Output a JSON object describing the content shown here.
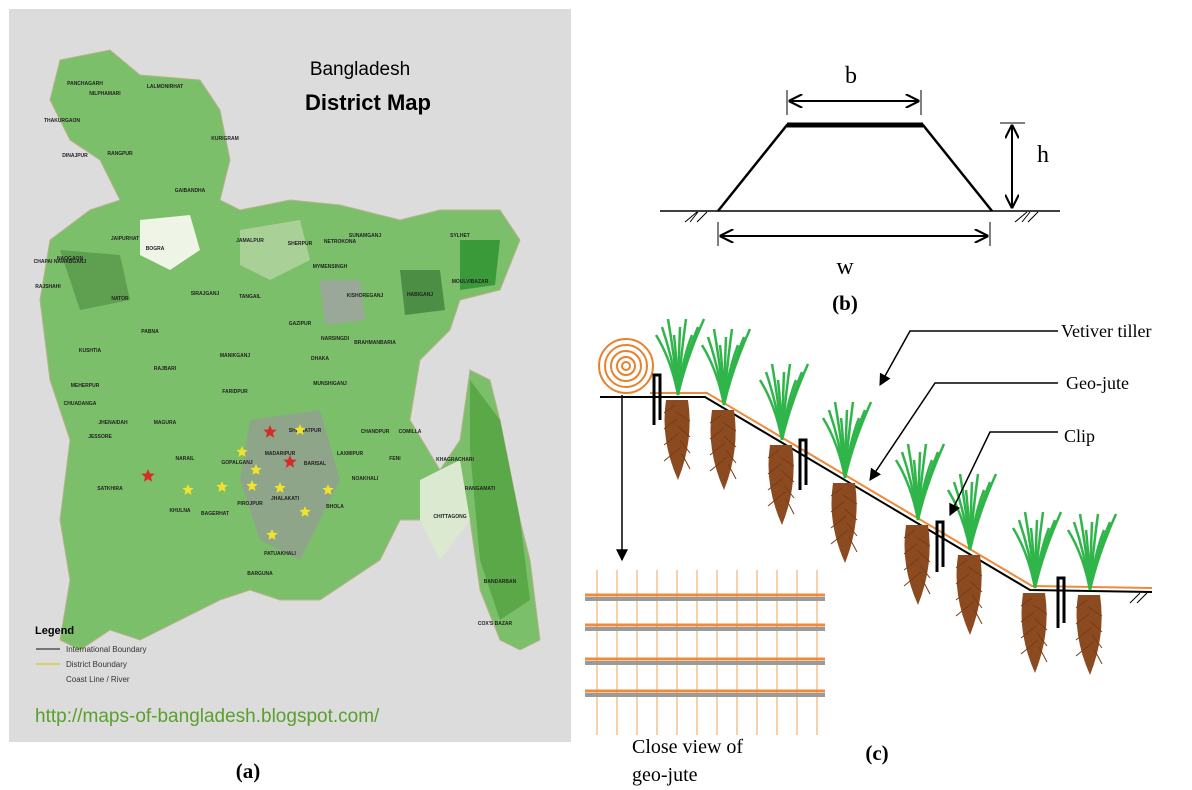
{
  "panel_a": {
    "title_line1": "Bangladesh",
    "title_line2": "District Map",
    "districts": [
      "PANCHAGARH",
      "THAKURGAON",
      "NILPHAMARI",
      "LALMONIRHAT",
      "DINAJPUR",
      "RANGPUR",
      "KURIGRAM",
      "GAIBANDHA",
      "JAIPURHAT",
      "SHERPUR",
      "SUNAMGANJ",
      "SYLHET",
      "NAOGAON",
      "BOGRA",
      "JAMALPUR",
      "NETROKONA",
      "CHAPAI NAWABGANJ",
      "MYMENSINGH",
      "RAJSHAHI",
      "NATOR",
      "SIRAJGANJ",
      "TANGAIL",
      "KISHOREGANJ",
      "HABIGANJ",
      "MOULVIBAZAR",
      "PABNA",
      "GAZIPUR",
      "NARSINGDI",
      "KUSHTIA",
      "MANIKGANJ",
      "DHAKA",
      "BRAHMANBARIA",
      "MEHERPUR",
      "RAJBARI",
      "CHUADANGA",
      "FARIDPUR",
      "MUNSHIGANJ",
      "JHENAIDAH",
      "MAGURA",
      "COMILLA",
      "SHARIATPUR",
      "CHANDPUR",
      "JESSORE",
      "NARAIL",
      "GOPALGANJ",
      "MADARIPUR",
      "LAXMIPUR",
      "FENI",
      "KHAGRACHARI",
      "SATKHIRA",
      "KHULNA",
      "BAGERHAT",
      "PIROJPUR",
      "BARISAL",
      "JHALAKATI",
      "NOAKHALI",
      "RANGAMATI",
      "BHOLA",
      "PATUAKHALI",
      "BARGUNA",
      "CHITTAGONG",
      "BANDARBAN",
      "COX'S BAZAR"
    ],
    "legend_title": "Legend",
    "legend_items": [
      "International Boundary",
      "District Boundary",
      "Coast Line / River"
    ],
    "url": "http://maps-of-bangladesh.blogspot.com/",
    "caption": "(a)"
  },
  "panel_b": {
    "label_b": "b",
    "label_h": "h",
    "label_w": "w",
    "caption": "(b)"
  },
  "panel_c": {
    "labels": [
      "Vetiver tiller",
      "Geo-jute",
      "Clip"
    ],
    "close_view_line1": "Close view of",
    "close_view_line2": "geo-jute",
    "caption": "(c)"
  }
}
